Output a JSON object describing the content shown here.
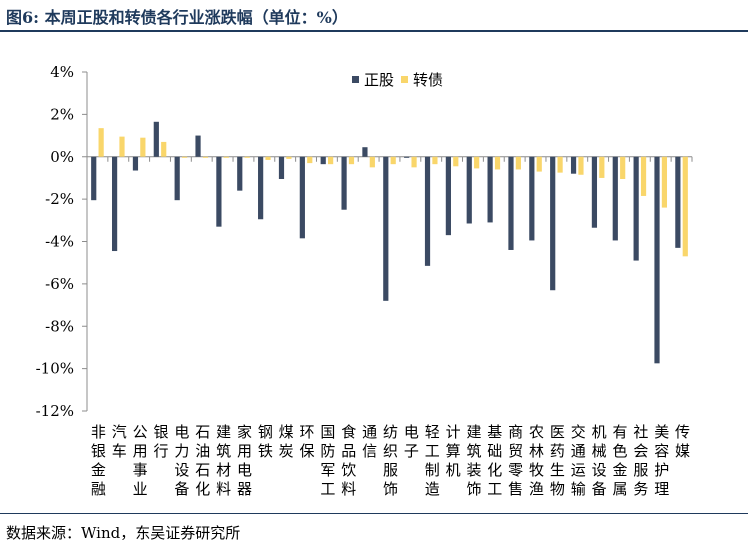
{
  "figure": {
    "prefix": "图6:",
    "title": "本周正股和转债各行业涨跌幅（单位：%）"
  },
  "source": "数据来源：Wind，东吴证券研究所",
  "colors": {
    "stock": "#3b4a63",
    "cb": "#f9d66b",
    "axis": "#8c8c8c"
  },
  "chart_data": {
    "type": "bar",
    "ylim": [
      -12,
      4
    ],
    "yticks": [
      "4%",
      "2%",
      "0%",
      "-2%",
      "-4%",
      "-6%",
      "-8%",
      "-10%",
      "-12%"
    ],
    "ytick_values": [
      4,
      2,
      0,
      -2,
      -4,
      -6,
      -8,
      -10,
      -12
    ],
    "legend_position": "top-right",
    "categories": [
      "非银金融",
      "汽车",
      "公用事业",
      "银行",
      "电力设备",
      "石油石化",
      "建筑材料",
      "家用电器",
      "钢铁",
      "煤炭",
      "环保",
      "国防军工",
      "食品饮料",
      "通信",
      "纺织服饰",
      "电子",
      "轻工制造",
      "计算机",
      "建筑装饰",
      "基础化工",
      "商贸零售",
      "农林牧渔",
      "医药生物",
      "交通运输",
      "机械设备",
      "有色金属",
      "社会服务",
      "美容护理",
      "传媒"
    ],
    "series": [
      {
        "name": "正股",
        "values": [
          -2.05,
          -4.45,
          -0.65,
          1.65,
          -2.05,
          1.0,
          -3.3,
          -1.6,
          -2.95,
          -1.05,
          -3.85,
          -0.35,
          -2.5,
          0.45,
          -6.8,
          -0.05,
          -5.15,
          -3.7,
          -3.15,
          -3.1,
          -4.4,
          -3.95,
          -6.3,
          -0.8,
          -3.35,
          -3.95,
          -4.9,
          -9.75,
          -4.3
        ]
      },
      {
        "name": "转债",
        "values": [
          1.35,
          0.95,
          0.9,
          0.7,
          -0.05,
          -0.05,
          -0.05,
          -0.05,
          -0.15,
          -0.1,
          -0.3,
          -0.35,
          -0.35,
          -0.5,
          -0.35,
          -0.5,
          -0.35,
          -0.45,
          -0.55,
          -0.6,
          -0.6,
          -0.7,
          -0.75,
          -0.85,
          -1.0,
          -1.05,
          -1.85,
          -2.4,
          -4.7
        ]
      }
    ]
  }
}
